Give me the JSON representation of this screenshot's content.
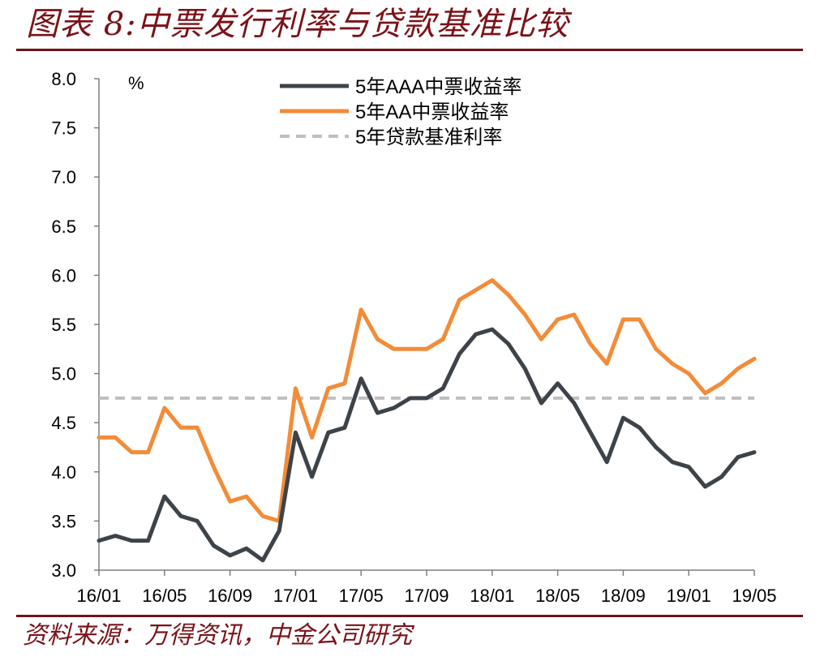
{
  "header": {
    "title": "图表 8:中票发行利率与贷款基准比较"
  },
  "footer": {
    "source": "资料来源：万得资讯，中金公司研究"
  },
  "chart_data": {
    "type": "line",
    "ylabel": "%",
    "ylim": [
      3.0,
      8.0
    ],
    "yticks": [
      "8.0",
      "7.5",
      "7.0",
      "6.5",
      "6.0",
      "5.5",
      "5.0",
      "4.5",
      "4.0",
      "3.5",
      "3.0"
    ],
    "xticks": [
      "16/01",
      "16/05",
      "16/09",
      "17/01",
      "17/05",
      "17/09",
      "18/01",
      "18/05",
      "18/09",
      "19/01",
      "19/05"
    ],
    "legend_position": "top-center",
    "grid": false,
    "colors": {
      "aaa": "#3d4349",
      "aa": "#f28c38",
      "loan": "#bfbfbf",
      "axis": "#7f7f7f",
      "accent": "#6e1418"
    },
    "x_dates": [
      "2016-01-01",
      "2016-02-01",
      "2016-03-01",
      "2016-04-01",
      "2016-05-01",
      "2016-06-01",
      "2016-07-01",
      "2016-08-01",
      "2016-09-01",
      "2016-10-01",
      "2016-11-01",
      "2016-12-01",
      "2017-01-01",
      "2017-02-01",
      "2017-03-01",
      "2017-04-01",
      "2017-05-01",
      "2017-06-01",
      "2017-07-01",
      "2017-08-01",
      "2017-09-01",
      "2017-10-01",
      "2017-11-01",
      "2017-12-01",
      "2018-01-01",
      "2018-02-01",
      "2018-03-01",
      "2018-04-01",
      "2018-05-01",
      "2018-06-01",
      "2018-07-01",
      "2018-08-01",
      "2018-09-01",
      "2018-10-01",
      "2018-11-01",
      "2018-12-01",
      "2019-01-01",
      "2019-02-01",
      "2019-03-01",
      "2019-04-01",
      "2019-05-01"
    ],
    "series": [
      {
        "name": "5年AAA中票收益率",
        "style": "solid",
        "values": [
          3.3,
          3.35,
          3.3,
          3.3,
          3.75,
          3.55,
          3.5,
          3.25,
          3.15,
          3.22,
          3.1,
          3.4,
          4.4,
          3.95,
          4.4,
          4.45,
          4.95,
          4.6,
          4.65,
          4.75,
          4.75,
          4.85,
          5.2,
          5.4,
          5.45,
          5.3,
          5.05,
          4.7,
          4.9,
          4.7,
          4.4,
          4.1,
          4.55,
          4.45,
          4.25,
          4.1,
          4.05,
          3.85,
          3.95,
          4.15,
          4.2
        ]
      },
      {
        "name": "5年AA中票收益率",
        "style": "solid",
        "values": [
          4.35,
          4.35,
          4.2,
          4.2,
          4.65,
          4.45,
          4.45,
          4.05,
          3.7,
          3.75,
          3.55,
          3.5,
          4.85,
          4.35,
          4.85,
          4.9,
          5.65,
          5.35,
          5.25,
          5.25,
          5.25,
          5.35,
          5.75,
          5.85,
          5.95,
          5.8,
          5.6,
          5.35,
          5.55,
          5.6,
          5.3,
          5.1,
          5.55,
          5.55,
          5.25,
          5.1,
          5.0,
          4.8,
          4.9,
          5.05,
          5.15
        ]
      },
      {
        "name": "5年贷款基准利率",
        "style": "dashed",
        "values": [
          4.75,
          4.75,
          4.75,
          4.75,
          4.75,
          4.75,
          4.75,
          4.75,
          4.75,
          4.75,
          4.75,
          4.75,
          4.75,
          4.75,
          4.75,
          4.75,
          4.75,
          4.75,
          4.75,
          4.75,
          4.75,
          4.75,
          4.75,
          4.75,
          4.75,
          4.75,
          4.75,
          4.75,
          4.75,
          4.75,
          4.75,
          4.75,
          4.75,
          4.75,
          4.75,
          4.75,
          4.75,
          4.75,
          4.75,
          4.75,
          4.75
        ]
      }
    ]
  }
}
